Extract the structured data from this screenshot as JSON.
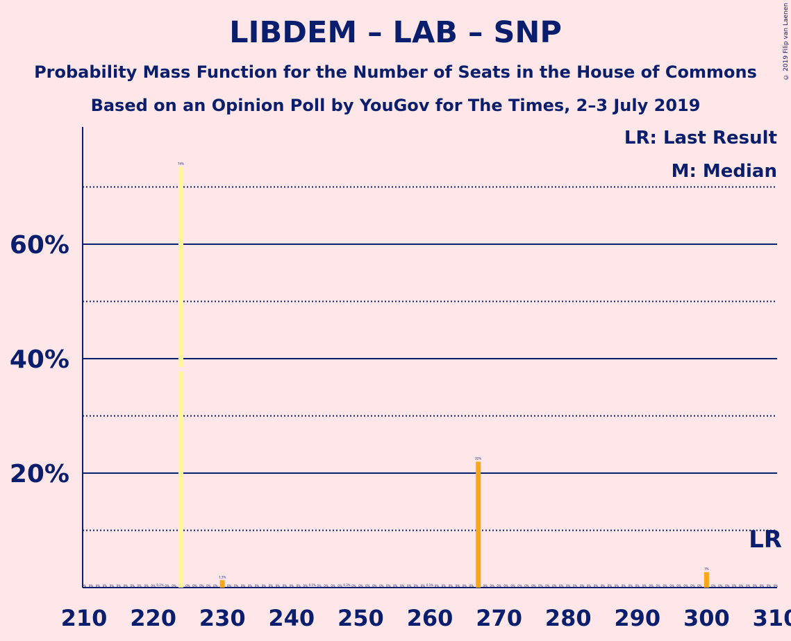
{
  "title": "LIBDEM – LAB – SNP",
  "subtitle_line1": "Probability Mass Function for the Number of Seats in the House of Commons",
  "subtitle_line2": "Based on an Opinion Poll by YouGov for The Times, 2–3 July 2019",
  "copyright": "© 2019 Filip van Laenen",
  "legend": {
    "last_result": "LR: Last Result",
    "median": "M: Median"
  },
  "colors": {
    "background": "#FFE6E9",
    "text": "#0A1E6E",
    "bar": "#FAA61A",
    "median_bar": "#FFF59A"
  },
  "chart_data": {
    "type": "bar",
    "xlim": [
      210,
      310
    ],
    "ylim": [
      0,
      80
    ],
    "x_ticks": [
      210,
      220,
      230,
      240,
      250,
      260,
      270,
      280,
      290,
      300,
      310
    ],
    "y_ticks": [
      20,
      40,
      60
    ],
    "y_tick_labels": [
      "20%",
      "40%",
      "60%"
    ],
    "y_dotted_lines": [
      10,
      30,
      50,
      70
    ],
    "last_result_seat": 310,
    "last_result_label": "LR",
    "median_seat": 224,
    "bars": [
      {
        "x": 224,
        "value": 73.5,
        "label": "74%",
        "median": true
      },
      {
        "x": 230,
        "value": 1.3,
        "label": "1.3%"
      },
      {
        "x": 267,
        "value": 22,
        "label": "22%"
      },
      {
        "x": 300,
        "value": 2.7,
        "label": "3%"
      }
    ],
    "small_labels": [
      {
        "x": 221,
        "label": "0.2%"
      },
      {
        "x": 243,
        "label": "0.1%"
      },
      {
        "x": 248,
        "label": "0.3%"
      },
      {
        "x": 260,
        "label": "0.1%"
      }
    ]
  }
}
